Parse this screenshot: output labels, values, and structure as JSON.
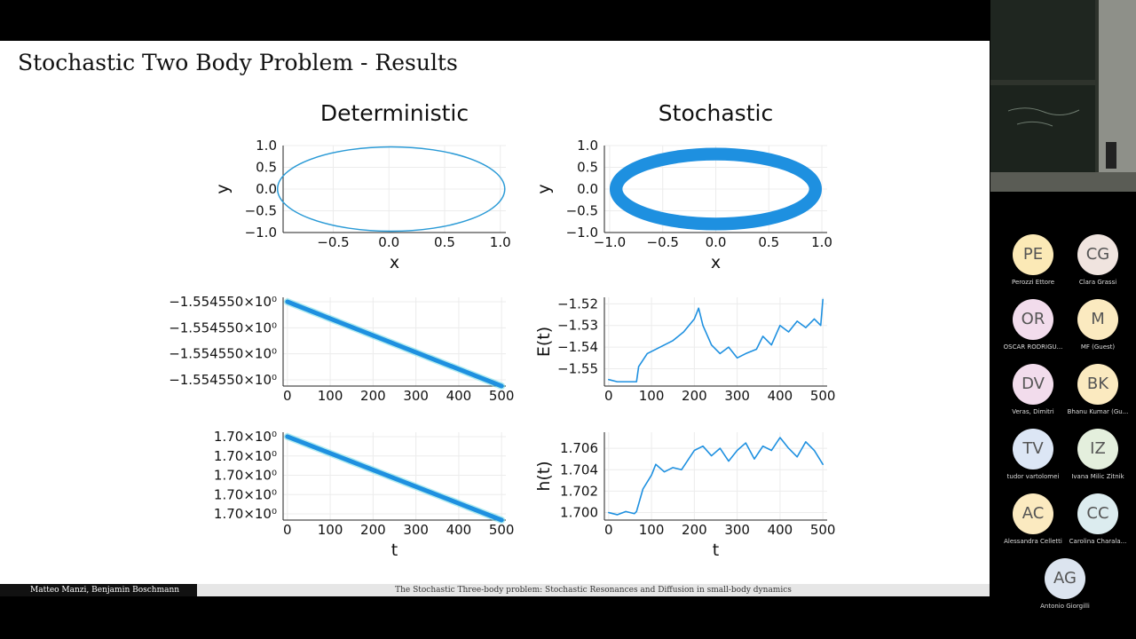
{
  "slide": {
    "title": "Stochastic Two Body Problem - Results",
    "footer_authors": "Matteo Manzi, Benjamin Boschmann",
    "footer_title": "The Stochastic Three-body problem: Stochastic Resonances and Diffusion in small-body dynamics"
  },
  "chart_data": [
    {
      "type": "line",
      "title": "Deterministic",
      "xlabel": "x",
      "ylabel": "y",
      "xlim": [
        -0.95,
        1.05
      ],
      "ylim": [
        -1.0,
        1.0
      ],
      "xticks": [
        "-0.5",
        "0.0",
        "0.5",
        "1.0"
      ],
      "yticks": [
        "1.0",
        "0.5",
        "0.0",
        "-0.5",
        "-1.0"
      ],
      "series": [
        {
          "shape": "ellipse",
          "center": [
            0.02,
            0.0
          ],
          "radii": [
            1.02,
            0.97
          ]
        }
      ],
      "grid": true,
      "color": "#2a9ad6"
    },
    {
      "type": "line",
      "title": "Stochastic",
      "xlabel": "x",
      "ylabel": "y",
      "xlim": [
        -1.05,
        1.05
      ],
      "ylim": [
        -1.0,
        1.0
      ],
      "xticks": [
        "-1.0",
        "-0.5",
        "0.0",
        "0.5",
        "1.0"
      ],
      "yticks": [
        "1.0",
        "0.5",
        "0.0",
        "-0.5",
        "-1.0"
      ],
      "series": [
        {
          "shape": "ellipse-band",
          "center": [
            0.0,
            0.0
          ],
          "radii": [
            1.0,
            0.95
          ],
          "band": 0.12
        }
      ],
      "grid": true,
      "color": "#1e90e0"
    },
    {
      "type": "line",
      "title": "",
      "xlabel": "",
      "ylabel": "",
      "xlim": [
        -10,
        510
      ],
      "ylim": [
        0,
        1
      ],
      "xticks": [
        "0",
        "100",
        "200",
        "300",
        "400",
        "500"
      ],
      "yticks": [
        "−1.554550×10⁰",
        "−1.554550×10⁰",
        "−1.554550×10⁰",
        "−1.554550×10⁰"
      ],
      "series": [
        {
          "x": [
            0,
            500
          ],
          "y": [
            0.95,
            0.0
          ]
        }
      ],
      "grid": true,
      "color": "#1e90e0"
    },
    {
      "type": "line",
      "title": "",
      "xlabel": "",
      "ylabel": "E(t)",
      "xlim": [
        -10,
        510
      ],
      "ylim": [
        -1.558,
        -1.517
      ],
      "xticks": [
        "0",
        "100",
        "200",
        "300",
        "400",
        "500"
      ],
      "yticks": [
        "-1.52",
        "-1.53",
        "-1.54",
        "-1.55"
      ],
      "series": [
        {
          "x": [
            0,
            20,
            40,
            65,
            70,
            90,
            110,
            130,
            150,
            175,
            200,
            210,
            220,
            240,
            260,
            280,
            300,
            320,
            345,
            360,
            380,
            400,
            420,
            440,
            460,
            480,
            495,
            500
          ],
          "y": [
            -1.555,
            -1.556,
            -1.556,
            -1.556,
            -1.549,
            -1.543,
            -1.541,
            -1.539,
            -1.537,
            -1.533,
            -1.527,
            -1.522,
            -1.53,
            -1.539,
            -1.543,
            -1.54,
            -1.545,
            -1.543,
            -1.541,
            -1.535,
            -1.539,
            -1.53,
            -1.533,
            -1.528,
            -1.531,
            -1.527,
            -1.53,
            -1.518
          ]
        }
      ],
      "grid": true,
      "color": "#1e90e0"
    },
    {
      "type": "line",
      "title": "",
      "xlabel": "t",
      "ylabel": "",
      "xlim": [
        -10,
        510
      ],
      "ylim": [
        0,
        1
      ],
      "xticks": [
        "0",
        "100",
        "200",
        "300",
        "400",
        "500"
      ],
      "yticks": [
        "1.70×10⁰",
        "1.70×10⁰",
        "1.70×10⁰",
        "1.70×10⁰",
        "1.70×10⁰"
      ],
      "series": [
        {
          "x": [
            0,
            500
          ],
          "y": [
            0.95,
            0.0
          ]
        }
      ],
      "grid": true,
      "color": "#1e90e0"
    },
    {
      "type": "line",
      "title": "",
      "xlabel": "t",
      "ylabel": "h(t)",
      "xlim": [
        -10,
        510
      ],
      "ylim": [
        1.6993,
        1.7075
      ],
      "xticks": [
        "0",
        "100",
        "200",
        "300",
        "400",
        "500"
      ],
      "yticks": [
        "1.706",
        "1.704",
        "1.702",
        "1.700"
      ],
      "series": [
        {
          "x": [
            0,
            20,
            40,
            60,
            65,
            80,
            100,
            110,
            130,
            150,
            170,
            200,
            220,
            240,
            260,
            280,
            300,
            320,
            340,
            360,
            380,
            400,
            420,
            440,
            460,
            480,
            500
          ],
          "y": [
            1.7,
            1.6998,
            1.7001,
            1.6999,
            1.7001,
            1.7022,
            1.7035,
            1.7045,
            1.7038,
            1.7042,
            1.704,
            1.7058,
            1.7062,
            1.7053,
            1.706,
            1.7048,
            1.7058,
            1.7065,
            1.705,
            1.7062,
            1.7058,
            1.707,
            1.706,
            1.7052,
            1.7066,
            1.7058,
            1.7045
          ]
        }
      ],
      "grid": true,
      "color": "#1e90e0"
    }
  ],
  "participants": [
    {
      "initials": "PE",
      "name": "Perozzi Ettore",
      "color": "#fbe9b6"
    },
    {
      "initials": "CG",
      "name": "Clara Grassi",
      "color": "#f0e4df"
    },
    {
      "initials": "OR",
      "name": "OSCAR RODRIGU...",
      "color": "#f2dcec"
    },
    {
      "initials": "M",
      "name": "MF (Guest)",
      "color": "#fbeac0"
    },
    {
      "initials": "DV",
      "name": "Veras, Dimitri",
      "color": "#f2dcec"
    },
    {
      "initials": "BK",
      "name": "Bhanu Kumar (Gu...",
      "color": "#fbeac0"
    },
    {
      "initials": "TV",
      "name": "tudor vartolomei",
      "color": "#dce6f5"
    },
    {
      "initials": "IZ",
      "name": "Ivana Milic Zitnik",
      "color": "#e4efdd"
    },
    {
      "initials": "AC",
      "name": "Alessandra Celletti",
      "color": "#fbeac0"
    },
    {
      "initials": "CC",
      "name": "Carolina Charala...",
      "color": "#dcecef"
    },
    {
      "initials": "AG",
      "name": "Antonio Giorgilli",
      "color": "#dce4ef"
    }
  ]
}
